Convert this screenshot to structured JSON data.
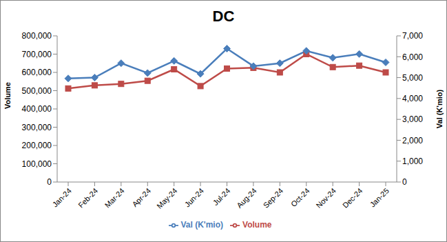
{
  "chart_data": {
    "type": "line",
    "title": "DC",
    "y_label": "Volume",
    "y2_label": "Val (K'mio)",
    "categories": [
      "Jan-24",
      "Feb-24",
      "Mar-24",
      "Apr-24",
      "May-24",
      "Jun-24",
      "Jul-24",
      "Aug-24",
      "Sep-24",
      "Oct-24",
      "Nov-24",
      "Dec-24",
      "Jan-25"
    ],
    "series": [
      {
        "name": "Volume",
        "color": "#be4b48",
        "marker": "square",
        "values": [
          512000,
          529000,
          537000,
          554000,
          617000,
          525000,
          621000,
          625000,
          600000,
          700000,
          629000,
          637000,
          600000
        ]
      },
      {
        "name": "Val (K'mio)",
        "color": "#4a7ebb",
        "marker": "diamond",
        "axis": "y2",
        "values": [
          4960,
          5000,
          5690,
          5220,
          5800,
          5180,
          6390,
          5550,
          5690,
          6280,
          5950,
          6130,
          5730
        ]
      }
    ],
    "ylim": [
      0,
      800000
    ],
    "yticks": [
      0,
      {
        "value": 100000,
        "label": "100,000"
      },
      {
        "value": 200000,
        "label": "200,000"
      },
      {
        "value": 300000,
        "label": "300,000"
      },
      {
        "value": 400000,
        "label": "400,000"
      },
      {
        "value": 500000,
        "label": "500,000"
      },
      {
        "value": 600000,
        "label": "600,000"
      },
      {
        "value": 700000,
        "label": "700,000"
      },
      {
        "value": 800000,
        "label": "800,000"
      }
    ],
    "y2lim": [
      0,
      7000
    ],
    "y2ticks": [
      0,
      {
        "value": 1000,
        "label": "1,000"
      },
      {
        "value": 2000,
        "label": "2,000"
      },
      {
        "value": 3000,
        "label": "3,000"
      },
      {
        "value": 4000,
        "label": "4,000"
      },
      {
        "value": 5000,
        "label": "5,000"
      },
      {
        "value": 6000,
        "label": "6,000"
      },
      {
        "value": 7000,
        "label": "7,000"
      }
    ],
    "grid": false,
    "legend": "bottom"
  }
}
